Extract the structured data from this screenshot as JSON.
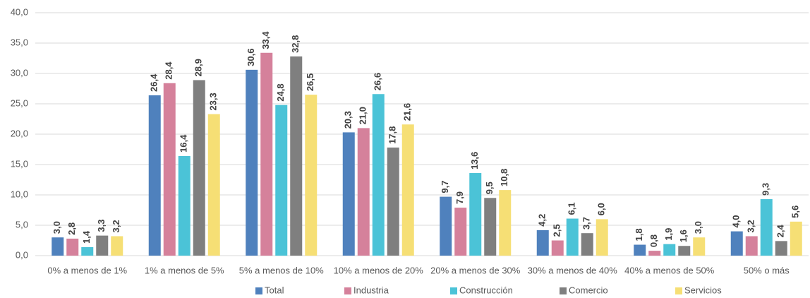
{
  "chart_data": {
    "type": "bar",
    "categories": [
      "0% a menos de 1%",
      "1% a menos de 5%",
      "5% a menos de 10%",
      "10% a menos de 20%",
      "20% a menos de 30%",
      "30% a menos de 40%",
      "40% a menos de 50%",
      "50% o más"
    ],
    "series": [
      {
        "name": "Total",
        "color": "#4f81bd",
        "values": [
          3.0,
          26.4,
          30.6,
          20.3,
          9.7,
          4.2,
          1.8,
          4.0
        ],
        "value_labels": [
          "3,0",
          "26,4",
          "30,6",
          "20,3",
          "9,7",
          "4,2",
          "1,8",
          "4,0"
        ]
      },
      {
        "name": "Industria",
        "color": "#d5819b",
        "values": [
          2.8,
          28.4,
          33.4,
          21.0,
          7.9,
          2.5,
          0.8,
          3.2
        ],
        "value_labels": [
          "2,8",
          "28,4",
          "33,4",
          "21,0",
          "7,9",
          "2,5",
          "0,8",
          "3,2"
        ]
      },
      {
        "name": "Construcción",
        "color": "#4bc3d7",
        "values": [
          1.4,
          16.4,
          24.8,
          26.6,
          13.6,
          6.1,
          1.9,
          9.3
        ],
        "value_labels": [
          "1,4",
          "16,4",
          "24,8",
          "26,6",
          "13,6",
          "6,1",
          "1,9",
          "9,3"
        ]
      },
      {
        "name": "Comercio",
        "color": "#7f7f7f",
        "values": [
          3.3,
          28.9,
          32.8,
          17.8,
          9.5,
          3.7,
          1.6,
          2.4
        ],
        "value_labels": [
          "3,3",
          "28,9",
          "32,8",
          "17,8",
          "9,5",
          "3,7",
          "1,6",
          "2,4"
        ]
      },
      {
        "name": "Servicios",
        "color": "#f6df75",
        "values": [
          3.2,
          23.3,
          26.5,
          21.6,
          10.8,
          6.0,
          3.0,
          5.6
        ],
        "value_labels": [
          "3,2",
          "23,3",
          "26,5",
          "21,6",
          "10,8",
          "6,0",
          "3,0",
          "5,6"
        ]
      }
    ],
    "ylim": [
      0,
      40
    ],
    "yticks": [
      {
        "value": 0,
        "label": "0,0"
      },
      {
        "value": 5,
        "label": "5,0"
      },
      {
        "value": 10,
        "label": "10,0"
      },
      {
        "value": 15,
        "label": "15,0"
      },
      {
        "value": 20,
        "label": "20,0"
      },
      {
        "value": 25,
        "label": "25,0"
      },
      {
        "value": 30,
        "label": "30,0"
      },
      {
        "value": 35,
        "label": "35,0"
      },
      {
        "value": 40,
        "label": "40,0"
      }
    ],
    "grid": true,
    "legend": "bottom"
  }
}
